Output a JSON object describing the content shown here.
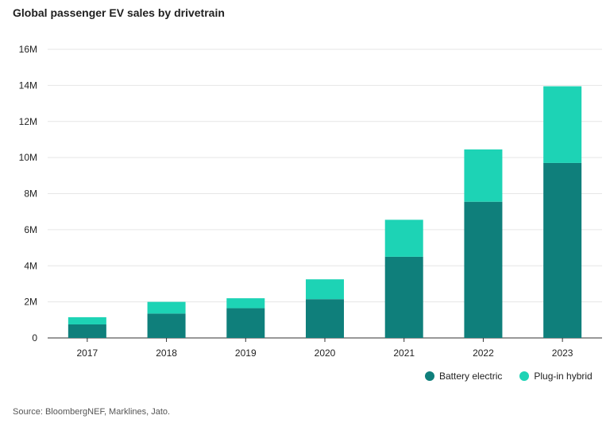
{
  "title": "Global passenger EV sales by drivetrain",
  "source": "Source: BloombergNEF, Marklines, Jato.",
  "colors": {
    "battery": "#0f7f7b",
    "phev": "#1dd3b5",
    "grid": "#e6e6e6",
    "axis": "#333333"
  },
  "legend": [
    {
      "label": "Battery electric",
      "color": "#0f7f7b"
    },
    {
      "label": "Plug-in hybrid",
      "color": "#1dd3b5"
    }
  ],
  "chart_data": {
    "type": "bar",
    "stacked": true,
    "categories": [
      "2017",
      "2018",
      "2019",
      "2020",
      "2021",
      "2022",
      "2023"
    ],
    "series": [
      {
        "name": "Battery electric",
        "values": [
          0.75,
          1.35,
          1.65,
          2.15,
          4.5,
          7.55,
          9.7
        ]
      },
      {
        "name": "Plug-in hybrid",
        "values": [
          0.4,
          0.65,
          0.55,
          1.1,
          2.05,
          2.9,
          4.25
        ]
      }
    ],
    "ylim": [
      0,
      16
    ],
    "yticks": [
      0,
      2,
      4,
      6,
      8,
      10,
      12,
      14,
      16
    ],
    "ytick_labels": [
      "0",
      "2M",
      "4M",
      "6M",
      "8M",
      "10M",
      "12M",
      "14M",
      "16M"
    ],
    "xlabel": "",
    "ylabel": "",
    "grid": true,
    "legend_position": "bottom-right"
  }
}
